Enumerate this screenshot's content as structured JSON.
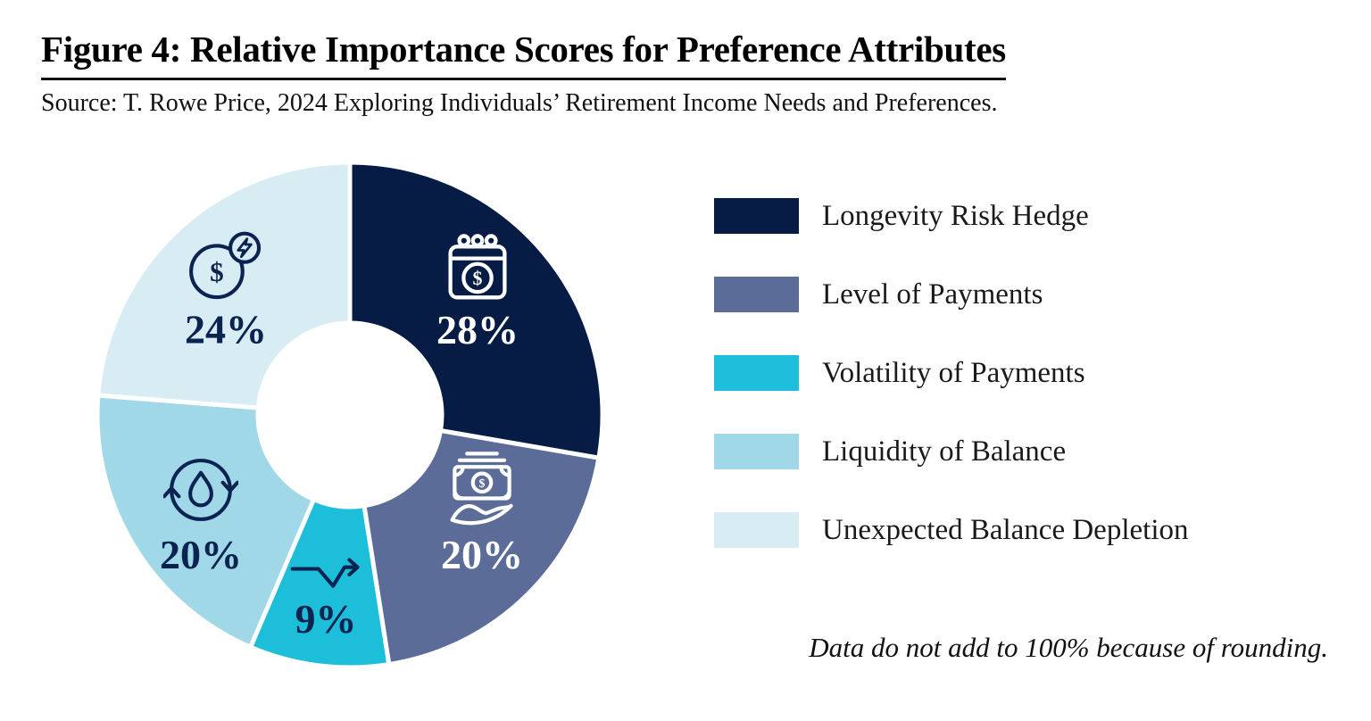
{
  "header": {
    "title": "Figure 4: Relative Importance Scores for Preference Attributes",
    "source": "Source: T. Rowe Price, 2024 Exploring Individuals’ Retirement Income Needs and Preferences."
  },
  "chart_data": {
    "type": "pie",
    "subtype": "donut",
    "title": "Figure 4: Relative Importance Scores for Preference Attributes",
    "start_angle_deg": 0,
    "direction": "clockwise",
    "legend_position": "right",
    "units": "percent",
    "values_sum": 101,
    "segments": [
      {
        "label": "Longevity Risk Hedge",
        "value": 28,
        "display": "28%",
        "color": "#071C45",
        "label_color": "#FFFFFF",
        "icon": "calendar-dollar-icon"
      },
      {
        "label": "Level of Payments",
        "value": 20,
        "display": "20%",
        "color": "#5C6C98",
        "label_color": "#FFFFFF",
        "icon": "cash-in-hand-icon"
      },
      {
        "label": "Volatility of Payments",
        "value": 9,
        "display": "9%",
        "color": "#1CBED9",
        "label_color": "#0A2350",
        "icon": "volatility-arrow-icon"
      },
      {
        "label": "Liquidity of Balance",
        "value": 20,
        "display": "20%",
        "color": "#A0D8E8",
        "label_color": "#0A2350",
        "icon": "liquidity-cycle-icon"
      },
      {
        "label": "Unexpected Balance Depletion",
        "value": 24,
        "display": "24%",
        "color": "#D8EDF3",
        "label_color": "#0A2350",
        "icon": "balance-depletion-icon"
      }
    ]
  },
  "footnote": "Data do not add to 100% because of rounding."
}
